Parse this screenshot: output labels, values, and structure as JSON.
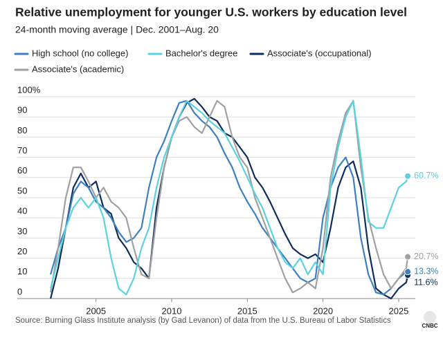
{
  "chart_data": {
    "type": "line",
    "title": "Relative unemployment for younger U.S. workers by education level",
    "subtitle": "24-month moving average | Dec. 2001–Aug. 20",
    "source": "Source: Burning Glass Institute analysis (by Gad Levanon) of data from the U.S. Bureau of Labor Statistics",
    "logo_text": "CNBC",
    "x": [
      2002,
      2002.5,
      2003,
      2003.5,
      2004,
      2004.5,
      2005,
      2005.5,
      2006,
      2006.5,
      2007,
      2007.5,
      2008,
      2008.5,
      2009,
      2009.5,
      2010,
      2010.5,
      2011,
      2011.5,
      2012,
      2012.5,
      2013,
      2013.5,
      2014,
      2014.5,
      2015,
      2015.5,
      2016,
      2016.5,
      2017,
      2017.5,
      2018,
      2018.5,
      2019,
      2019.5,
      2020,
      2020.5,
      2021,
      2021.5,
      2022,
      2022.5,
      2023,
      2023.5,
      2024,
      2024.5,
      2025,
      2025.5,
      2025.6
    ],
    "xlim": [
      1999.8,
      2026.1
    ],
    "xticks": [
      2005,
      2010,
      2015,
      2020,
      2025
    ],
    "ylim": [
      0,
      100
    ],
    "yticks": [
      {
        "value": 100,
        "label": "100%"
      },
      90,
      80,
      70,
      60,
      50,
      40,
      30,
      20,
      10,
      0
    ],
    "grid": true,
    "series": [
      {
        "name": "High school (no college)",
        "color": "#3c7fc2",
        "values": [
          12,
          25,
          35,
          52,
          58,
          55,
          48,
          45,
          40,
          33,
          28,
          30,
          35,
          55,
          70,
          78,
          88,
          97,
          98,
          92,
          88,
          85,
          80,
          72,
          65,
          55,
          48,
          42,
          35,
          30,
          25,
          20,
          15,
          10,
          8,
          10,
          40,
          55,
          65,
          70,
          60,
          30,
          12,
          3,
          2,
          5,
          10,
          13.3,
          13.3
        ],
        "value_labels": [
          null,
          null,
          null,
          null,
          null,
          null,
          null,
          null,
          null,
          null,
          null,
          null,
          null,
          null,
          null,
          null,
          null,
          null,
          null,
          null,
          null,
          null,
          null,
          null,
          null,
          null,
          null,
          null,
          null,
          null,
          null,
          null,
          null,
          null,
          null,
          null,
          null,
          null,
          null,
          null,
          null,
          null,
          null,
          null,
          null,
          null,
          null,
          null,
          "13.3%"
        ]
      },
      {
        "name": "Bachelor's degree",
        "color": "#5ad2e0",
        "values": [
          5,
          20,
          35,
          45,
          50,
          45,
          50,
          40,
          20,
          5,
          2,
          10,
          25,
          35,
          55,
          70,
          80,
          90,
          98,
          95,
          92,
          88,
          85,
          82,
          75,
          68,
          60,
          52,
          45,
          35,
          25,
          18,
          15,
          20,
          12,
          18,
          12,
          55,
          75,
          90,
          98,
          70,
          38,
          35,
          35,
          45,
          55,
          58,
          60.7
        ],
        "value_labels": [
          null,
          null,
          null,
          null,
          null,
          null,
          null,
          null,
          null,
          null,
          null,
          null,
          null,
          null,
          null,
          null,
          null,
          null,
          null,
          null,
          null,
          null,
          null,
          null,
          null,
          null,
          null,
          null,
          null,
          null,
          null,
          null,
          null,
          null,
          null,
          null,
          null,
          null,
          null,
          null,
          null,
          null,
          null,
          null,
          null,
          null,
          null,
          null,
          "60.7%"
        ]
      },
      {
        "name": "Associate's (occupational)",
        "color": "#0d2b5e",
        "values": [
          0,
          15,
          35,
          55,
          62,
          55,
          58,
          45,
          42,
          30,
          25,
          18,
          15,
          10,
          45,
          65,
          80,
          90,
          97,
          99,
          95,
          90,
          88,
          82,
          80,
          75,
          70,
          60,
          55,
          48,
          40,
          32,
          25,
          22,
          20,
          22,
          18,
          35,
          55,
          65,
          68,
          55,
          25,
          5,
          2,
          0,
          5,
          8,
          11.6
        ],
        "value_labels": [
          null,
          null,
          null,
          null,
          null,
          null,
          null,
          null,
          null,
          null,
          null,
          null,
          null,
          null,
          null,
          null,
          null,
          null,
          null,
          null,
          null,
          null,
          null,
          null,
          null,
          null,
          null,
          null,
          null,
          null,
          null,
          null,
          null,
          null,
          null,
          null,
          null,
          null,
          null,
          null,
          null,
          null,
          null,
          null,
          null,
          null,
          null,
          null,
          "11.6%"
        ]
      },
      {
        "name": "Associate's (academic)",
        "color": "#a0a0a0",
        "values": [
          3,
          25,
          50,
          65,
          65,
          58,
          50,
          55,
          48,
          45,
          40,
          25,
          12,
          10,
          40,
          65,
          80,
          88,
          90,
          85,
          82,
          90,
          98,
          95,
          80,
          70,
          65,
          50,
          40,
          30,
          20,
          10,
          3,
          5,
          8,
          5,
          25,
          60,
          78,
          92,
          98,
          65,
          40,
          25,
          12,
          5,
          10,
          15,
          20.7
        ],
        "value_labels": [
          null,
          null,
          null,
          null,
          null,
          null,
          null,
          null,
          null,
          null,
          null,
          null,
          null,
          null,
          null,
          null,
          null,
          null,
          null,
          null,
          null,
          null,
          null,
          null,
          null,
          null,
          null,
          null,
          null,
          null,
          null,
          null,
          null,
          null,
          null,
          null,
          null,
          null,
          null,
          null,
          null,
          null,
          null,
          null,
          null,
          null,
          null,
          null,
          "20.7%"
        ]
      }
    ]
  }
}
